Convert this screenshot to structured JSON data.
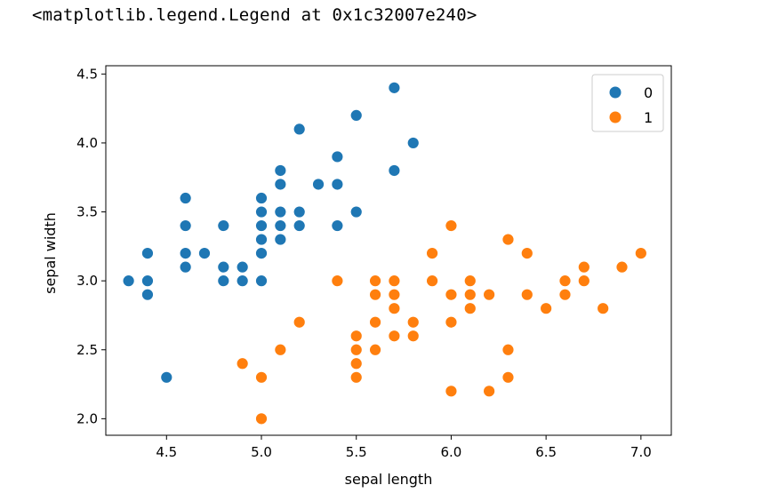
{
  "output_text": "<matplotlib.legend.Legend at 0x1c32007e240>",
  "chart_data": {
    "type": "scatter",
    "title": "",
    "xlabel": "sepal length",
    "ylabel": "sepal width",
    "xlim": [
      4.18,
      7.16
    ],
    "ylim": [
      1.88,
      4.56
    ],
    "xticks": [
      "4.5",
      "5.0",
      "5.5",
      "6.0",
      "6.5",
      "7.0"
    ],
    "yticks": [
      "2.0",
      "2.5",
      "3.0",
      "3.5",
      "4.0",
      "4.5"
    ],
    "legend_position": "top-right",
    "series": [
      {
        "name": "0",
        "color": "#1f77b4",
        "points": [
          [
            4.3,
            3.0
          ],
          [
            4.4,
            3.2
          ],
          [
            4.4,
            3.0
          ],
          [
            4.4,
            2.9
          ],
          [
            4.5,
            2.3
          ],
          [
            4.6,
            3.6
          ],
          [
            4.6,
            3.4
          ],
          [
            4.6,
            3.2
          ],
          [
            4.6,
            3.1
          ],
          [
            4.7,
            3.2
          ],
          [
            4.8,
            3.4
          ],
          [
            4.8,
            3.1
          ],
          [
            4.8,
            3.0
          ],
          [
            4.9,
            3.1
          ],
          [
            4.9,
            3.0
          ],
          [
            5.0,
            3.6
          ],
          [
            5.0,
            3.5
          ],
          [
            5.0,
            3.4
          ],
          [
            5.0,
            3.3
          ],
          [
            5.0,
            3.2
          ],
          [
            5.0,
            3.0
          ],
          [
            5.1,
            3.8
          ],
          [
            5.1,
            3.7
          ],
          [
            5.1,
            3.5
          ],
          [
            5.1,
            3.4
          ],
          [
            5.1,
            3.3
          ],
          [
            5.2,
            4.1
          ],
          [
            5.2,
            3.5
          ],
          [
            5.2,
            3.4
          ],
          [
            5.3,
            3.7
          ],
          [
            5.4,
            3.9
          ],
          [
            5.4,
            3.7
          ],
          [
            5.4,
            3.4
          ],
          [
            5.5,
            4.2
          ],
          [
            5.5,
            3.5
          ],
          [
            5.7,
            4.4
          ],
          [
            5.7,
            3.8
          ],
          [
            5.8,
            4.0
          ]
        ]
      },
      {
        "name": "1",
        "color": "#ff7f0e",
        "points": [
          [
            4.9,
            2.4
          ],
          [
            5.0,
            2.3
          ],
          [
            5.0,
            2.0
          ],
          [
            5.1,
            2.5
          ],
          [
            5.2,
            2.7
          ],
          [
            5.4,
            3.0
          ],
          [
            5.5,
            2.6
          ],
          [
            5.5,
            2.5
          ],
          [
            5.5,
            2.4
          ],
          [
            5.5,
            2.3
          ],
          [
            5.6,
            3.0
          ],
          [
            5.6,
            2.9
          ],
          [
            5.6,
            2.7
          ],
          [
            5.6,
            2.5
          ],
          [
            5.7,
            3.0
          ],
          [
            5.7,
            2.9
          ],
          [
            5.7,
            2.8
          ],
          [
            5.7,
            2.6
          ],
          [
            5.8,
            2.7
          ],
          [
            5.8,
            2.6
          ],
          [
            5.9,
            3.2
          ],
          [
            5.9,
            3.0
          ],
          [
            6.0,
            3.4
          ],
          [
            6.0,
            2.9
          ],
          [
            6.0,
            2.7
          ],
          [
            6.0,
            2.2
          ],
          [
            6.1,
            3.0
          ],
          [
            6.1,
            2.9
          ],
          [
            6.1,
            2.8
          ],
          [
            6.2,
            2.9
          ],
          [
            6.2,
            2.2
          ],
          [
            6.3,
            3.3
          ],
          [
            6.3,
            2.5
          ],
          [
            6.3,
            2.3
          ],
          [
            6.4,
            3.2
          ],
          [
            6.4,
            2.9
          ],
          [
            6.5,
            2.8
          ],
          [
            6.6,
            3.0
          ],
          [
            6.6,
            2.9
          ],
          [
            6.7,
            3.1
          ],
          [
            6.7,
            3.0
          ],
          [
            6.8,
            2.8
          ],
          [
            6.9,
            3.1
          ],
          [
            7.0,
            3.2
          ]
        ]
      }
    ]
  }
}
